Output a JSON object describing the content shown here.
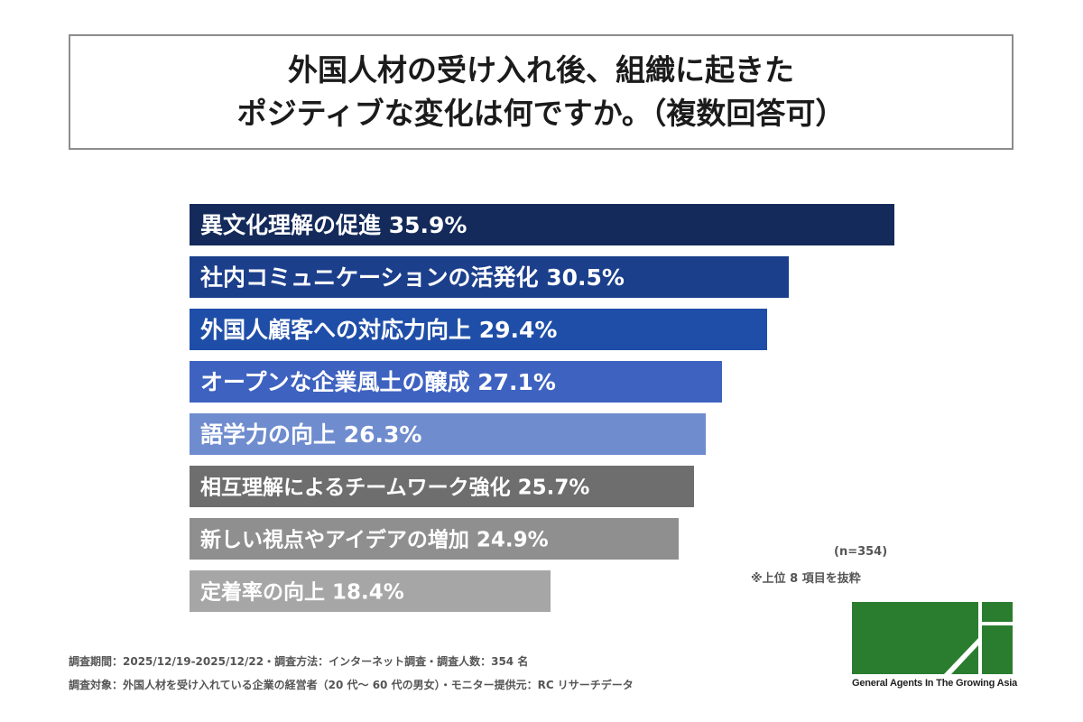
{
  "title": {
    "line1": "外国人材の受け入れ後、組織に起きた",
    "line2": "ポジティブな変化は何ですか。（複数回答可）"
  },
  "chart_data": {
    "type": "bar",
    "orientation": "horizontal",
    "categories": [
      "異文化理解の促進",
      "社内コミュニケーションの活発化",
      "外国人顧客への対応力向上",
      "オープンな企業風土の醸成",
      "語学力の向上",
      "相互理解によるチームワーク強化",
      "新しい視点やアイデアの増加",
      "定着率の向上"
    ],
    "values": [
      35.9,
      30.5,
      29.4,
      27.1,
      26.3,
      25.7,
      24.9,
      18.4
    ],
    "value_labels": [
      "35.9%",
      "30.5%",
      "29.4%",
      "27.1%",
      "26.3%",
      "25.7%",
      "24.9%",
      "18.4%"
    ],
    "bar_colors": [
      "#142a5a",
      "#1c3f8c",
      "#1f4ea8",
      "#3e62c0",
      "#6f8ccf",
      "#6e6e6e",
      "#8f8f8f",
      "#a6a6a6"
    ],
    "xlim": [
      0,
      35.9
    ],
    "grid": false,
    "legend": "none"
  },
  "notes": {
    "sample_size": "(n=354)",
    "extract_note": "※上位 8 項目を抜粋"
  },
  "footer": {
    "line1": "調査期間：2025/12/19-2025/12/22・調査方法：インターネット調査・調査人数：354 名",
    "line2": "調査対象：外国人材を受け入れている企業の経営者（20 代〜 60 代の男女）・モニター提供元：RC リサーチデータ"
  },
  "logo": {
    "text": "General Agents In The Growing Asia",
    "color": "#2a7d2e"
  }
}
